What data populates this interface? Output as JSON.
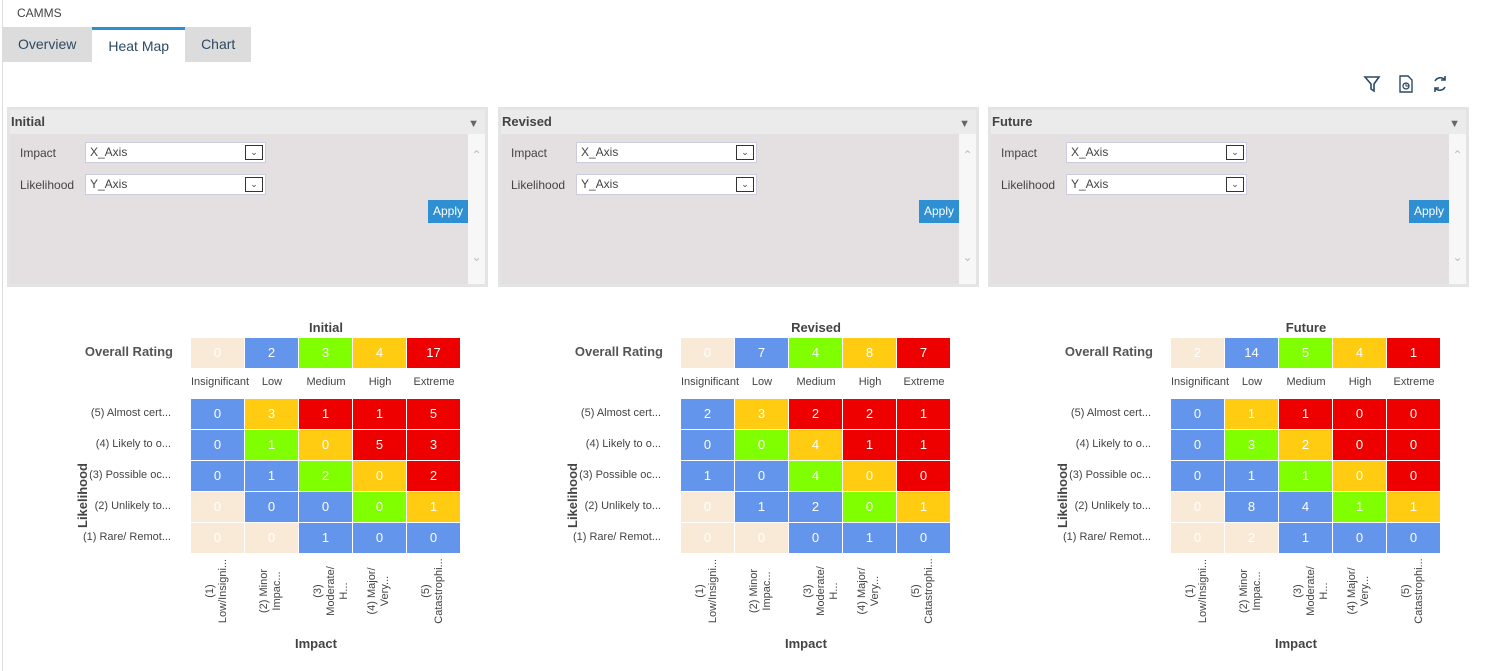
{
  "app_title": "CAMMS",
  "tabs": [
    "Overview",
    "Heat Map",
    "Chart"
  ],
  "active_tab": "Heat Map",
  "toolbar_icons": [
    "filter-icon",
    "report-icon",
    "refresh-icon"
  ],
  "panels": [
    {
      "title": "Initial",
      "impact_label": "Impact",
      "impact_value": "X_Axis",
      "likelihood_label": "Likelihood",
      "likelihood_value": "Y_Axis",
      "apply": "Apply"
    },
    {
      "title": "Revised",
      "impact_label": "Impact",
      "impact_value": "X_Axis",
      "likelihood_label": "Likelihood",
      "likelihood_value": "Y_Axis",
      "apply": "Apply"
    },
    {
      "title": "Future",
      "impact_label": "Impact",
      "impact_value": "X_Axis",
      "likelihood_label": "Likelihood",
      "likelihood_value": "Y_Axis",
      "apply": "Apply"
    }
  ],
  "colors": {
    "insignificant": "#f9ead8",
    "low": "#6495ed",
    "medium": "#7fff00",
    "high": "#ffcc11",
    "extreme": "#ee0000"
  },
  "rating_labels": [
    "Insignificant",
    "Low",
    "Medium",
    "High",
    "Extreme"
  ],
  "overall_label": "Overall Rating",
  "likelihood_axis": "Likelihood",
  "impact_axis": "Impact",
  "likelihood_labels": [
    "(5) Almost cert...",
    "(4) Likely to o...",
    "(3) Possible oc...",
    "(2) Unlikely to...",
    "(1) Rare/ Remot..."
  ],
  "impact_labels": [
    "(1) Low/Insigni...",
    "(2) Minor Impac...",
    "(3) Moderate/ H...",
    "(4) Major/ Very...",
    "(5) Catastrophi..."
  ],
  "cell_ratings": [
    [
      1,
      3,
      4,
      4,
      4
    ],
    [
      1,
      2,
      3,
      4,
      4
    ],
    [
      1,
      1,
      2,
      3,
      4
    ],
    [
      0,
      1,
      1,
      2,
      3
    ],
    [
      0,
      0,
      1,
      1,
      1
    ]
  ],
  "heatmaps": [
    {
      "title": "Initial",
      "overall": [
        0,
        2,
        3,
        4,
        17
      ],
      "grid": [
        [
          0,
          3,
          1,
          1,
          5
        ],
        [
          0,
          1,
          0,
          5,
          3
        ],
        [
          0,
          1,
          2,
          0,
          2
        ],
        [
          0,
          0,
          0,
          0,
          1
        ],
        [
          0,
          0,
          1,
          0,
          0
        ]
      ]
    },
    {
      "title": "Revised",
      "overall": [
        0,
        7,
        4,
        8,
        7
      ],
      "grid": [
        [
          2,
          3,
          2,
          2,
          1
        ],
        [
          0,
          0,
          4,
          1,
          1
        ],
        [
          1,
          0,
          4,
          0,
          0
        ],
        [
          0,
          1,
          2,
          0,
          1
        ],
        [
          0,
          0,
          0,
          1,
          0
        ]
      ]
    },
    {
      "title": "Future",
      "overall": [
        2,
        14,
        5,
        4,
        1
      ],
      "grid": [
        [
          0,
          1,
          1,
          0,
          0
        ],
        [
          0,
          3,
          2,
          0,
          0
        ],
        [
          0,
          1,
          1,
          0,
          0
        ],
        [
          0,
          8,
          4,
          1,
          1
        ],
        [
          0,
          2,
          1,
          0,
          0
        ]
      ]
    }
  ]
}
